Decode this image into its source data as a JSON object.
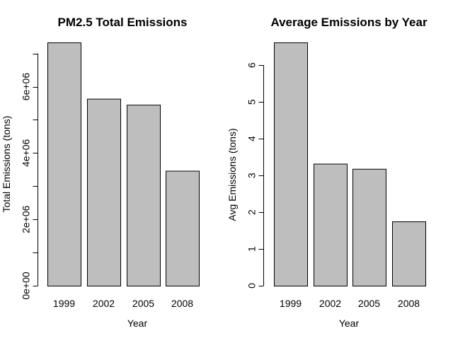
{
  "chart_data": [
    {
      "type": "bar",
      "title": "PM2.5 Total Emissions",
      "xlabel": "Year",
      "ylabel": "Total Emissions (tons)",
      "categories": [
        "1999",
        "2002",
        "2005",
        "2008"
      ],
      "values": [
        7332967,
        5635780,
        5454703,
        3464206
      ],
      "ylim": [
        0,
        7332967
      ],
      "yticks": [
        0,
        2000000,
        4000000,
        6000000
      ],
      "ytick_labels": [
        "0e+00",
        "2e+06",
        "4e+06",
        "6e+06"
      ],
      "yticks_minor": [
        1000000,
        3000000,
        5000000,
        7000000
      ],
      "grid": false,
      "bar_color": "#bebebe",
      "edge_color": "#000000"
    },
    {
      "type": "bar",
      "title": "Average Emissions by Year",
      "xlabel": "Year",
      "ylabel": "Avg Emissions (tons)",
      "categories": [
        "1999",
        "2002",
        "2005",
        "2008"
      ],
      "values": [
        6.62,
        3.32,
        3.18,
        1.75
      ],
      "ylim": [
        0,
        6.62
      ],
      "yticks": [
        0,
        1,
        2,
        3,
        4,
        5,
        6
      ],
      "ytick_labels": [
        "0",
        "1",
        "2",
        "3",
        "4",
        "5",
        "6"
      ],
      "yticks_minor": [],
      "grid": false,
      "bar_color": "#bebebe",
      "edge_color": "#000000"
    }
  ]
}
